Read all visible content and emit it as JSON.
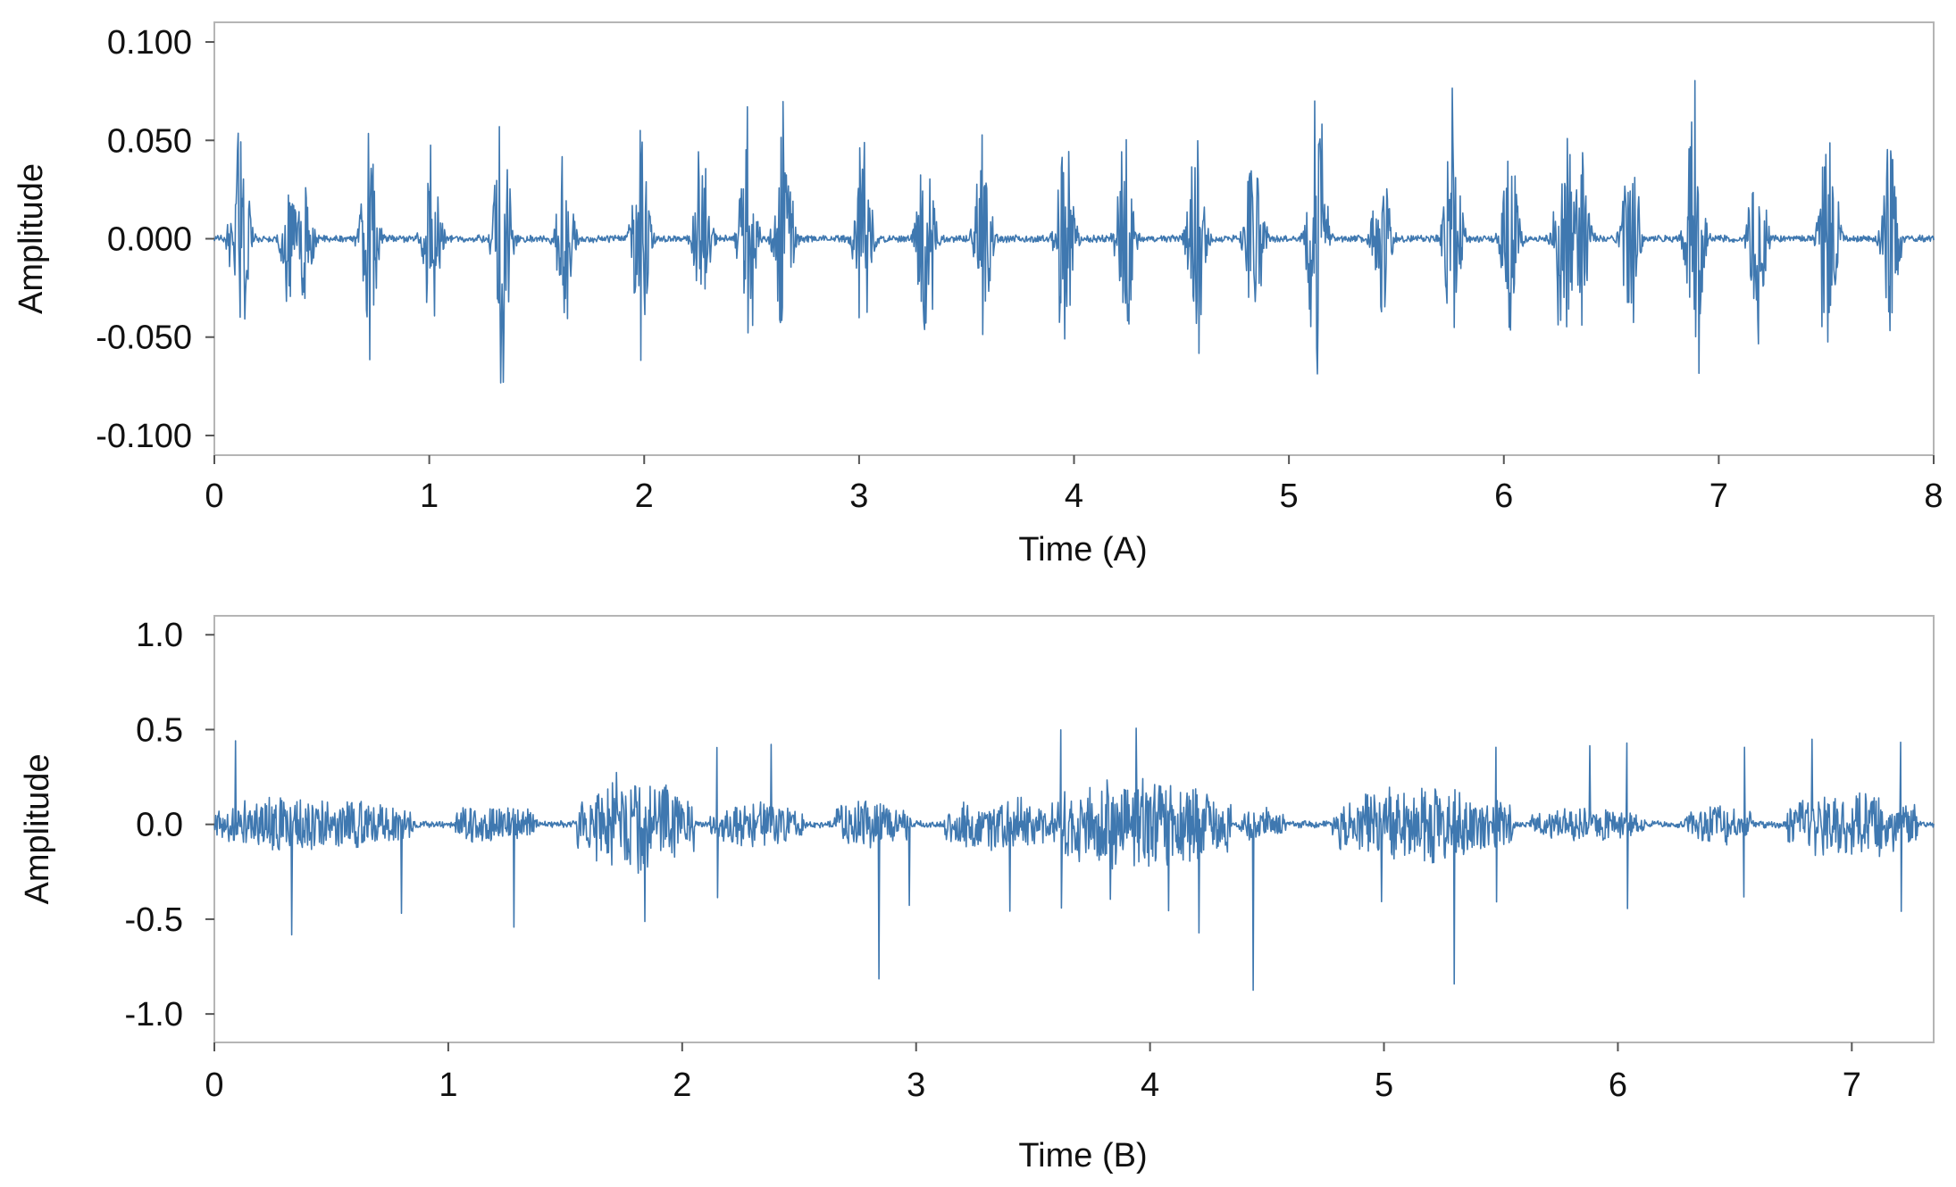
{
  "chart_data": [
    {
      "type": "line",
      "xlabel": "Time (A)",
      "ylabel": "Amplitude",
      "xlim": [
        0,
        8
      ],
      "ylim": [
        -0.11,
        0.11
      ],
      "x_ticks": [
        0,
        1,
        2,
        3,
        4,
        5,
        6,
        7,
        8
      ],
      "x_tick_labels": [
        "0",
        "1",
        "2",
        "3",
        "4",
        "5",
        "6",
        "7",
        "8"
      ],
      "y_ticks": [
        0.1,
        0.05,
        0,
        -0.05,
        -0.1
      ],
      "y_tick_labels": [
        "0.100",
        "0.050",
        "0.000",
        "-0.050",
        "-0.100"
      ],
      "grid": false,
      "color": "#3f78b0",
      "baseline_amplitude": 0.002,
      "bursts": [
        {
          "t": 0.12,
          "amp": 0.085
        },
        {
          "t": 0.35,
          "amp": 0.042
        },
        {
          "t": 0.42,
          "amp": 0.048
        },
        {
          "t": 0.72,
          "amp": 0.068
        },
        {
          "t": 1.01,
          "amp": 0.062
        },
        {
          "t": 1.34,
          "amp": 0.085
        },
        {
          "t": 1.63,
          "amp": 0.058
        },
        {
          "t": 1.98,
          "amp": 0.08
        },
        {
          "t": 2.27,
          "amp": 0.055
        },
        {
          "t": 2.48,
          "amp": 0.068
        },
        {
          "t": 2.65,
          "amp": 0.075
        },
        {
          "t": 3.02,
          "amp": 0.068
        },
        {
          "t": 3.31,
          "amp": 0.07
        },
        {
          "t": 3.58,
          "amp": 0.06
        },
        {
          "t": 3.96,
          "amp": 0.072
        },
        {
          "t": 4.24,
          "amp": 0.062
        },
        {
          "t": 4.57,
          "amp": 0.068
        },
        {
          "t": 4.84,
          "amp": 0.062
        },
        {
          "t": 5.13,
          "amp": 0.095
        },
        {
          "t": 5.43,
          "amp": 0.062
        },
        {
          "t": 5.76,
          "amp": 0.08
        },
        {
          "t": 6.03,
          "amp": 0.058
        },
        {
          "t": 6.28,
          "amp": 0.083
        },
        {
          "t": 6.36,
          "amp": 0.05
        },
        {
          "t": 6.59,
          "amp": 0.062
        },
        {
          "t": 6.89,
          "amp": 0.097
        },
        {
          "t": 7.18,
          "amp": 0.06
        },
        {
          "t": 7.51,
          "amp": 0.08
        },
        {
          "t": 7.8,
          "amp": 0.058
        }
      ]
    },
    {
      "type": "line",
      "xlabel": "Time  (B)",
      "ylabel": "Amplitude",
      "xlim": [
        0,
        7.35
      ],
      "ylim": [
        -1.15,
        1.1
      ],
      "x_ticks": [
        0,
        1,
        2,
        3,
        4,
        5,
        6,
        7
      ],
      "x_tick_labels": [
        "0",
        "1",
        "2",
        "3",
        "4",
        "5",
        "6",
        "7"
      ],
      "y_ticks": [
        1.0,
        0.5,
        0.0,
        -0.5,
        -1.0
      ],
      "y_tick_labels": [
        "1.0",
        "0.5",
        "0.0",
        "-0.5",
        "-1.0"
      ],
      "grid": false,
      "color": "#3f78b0",
      "baseline_amplitude": 0.02,
      "noise_regions": [
        {
          "start": 0.0,
          "end": 0.85,
          "amp": 0.17
        },
        {
          "start": 1.03,
          "end": 1.38,
          "amp": 0.13
        },
        {
          "start": 1.55,
          "end": 2.05,
          "amp": 0.3
        },
        {
          "start": 2.12,
          "end": 2.52,
          "amp": 0.14
        },
        {
          "start": 2.65,
          "end": 2.98,
          "amp": 0.16
        },
        {
          "start": 3.12,
          "end": 3.58,
          "amp": 0.17
        },
        {
          "start": 3.58,
          "end": 4.35,
          "amp": 0.28
        },
        {
          "start": 4.38,
          "end": 4.58,
          "amp": 0.1
        },
        {
          "start": 4.78,
          "end": 5.55,
          "amp": 0.23
        },
        {
          "start": 5.63,
          "end": 6.12,
          "amp": 0.1
        },
        {
          "start": 6.28,
          "end": 6.58,
          "amp": 0.12
        },
        {
          "start": 6.72,
          "end": 7.28,
          "amp": 0.2
        }
      ],
      "spikes": [
        {
          "t": 0.09,
          "amp": 0.46
        },
        {
          "t": 0.33,
          "amp": 0.66
        },
        {
          "t": 0.8,
          "amp": 0.5
        },
        {
          "t": 1.28,
          "amp": 0.6
        },
        {
          "t": 1.84,
          "amp": 0.55
        },
        {
          "t": 2.15,
          "amp": 0.45
        },
        {
          "t": 2.38,
          "amp": 0.45
        },
        {
          "t": 2.84,
          "amp": 0.92
        },
        {
          "t": 2.97,
          "amp": 0.5
        },
        {
          "t": 3.4,
          "amp": 0.46
        },
        {
          "t": 3.62,
          "amp": 0.5
        },
        {
          "t": 3.83,
          "amp": 0.45
        },
        {
          "t": 3.94,
          "amp": 0.52
        },
        {
          "t": 4.08,
          "amp": 0.52
        },
        {
          "t": 4.21,
          "amp": 0.58
        },
        {
          "t": 4.44,
          "amp": 1.02
        },
        {
          "t": 4.99,
          "amp": 0.46
        },
        {
          "t": 5.3,
          "amp": 0.92
        },
        {
          "t": 5.48,
          "amp": 0.46
        },
        {
          "t": 5.88,
          "amp": 0.45
        },
        {
          "t": 6.04,
          "amp": 0.45
        },
        {
          "t": 6.54,
          "amp": 0.45
        },
        {
          "t": 6.83,
          "amp": 0.5
        },
        {
          "t": 7.21,
          "amp": 0.47
        }
      ]
    }
  ]
}
